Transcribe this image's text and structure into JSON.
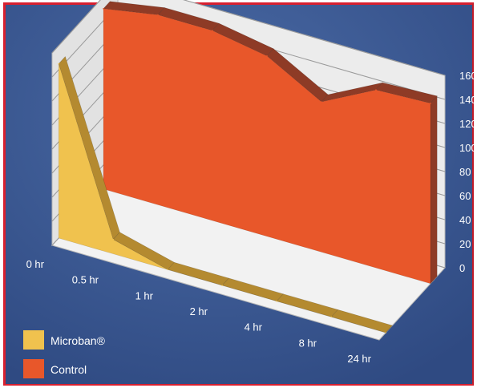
{
  "chart_data": {
    "type": "area",
    "title": "",
    "xlabel": "",
    "ylabel": "",
    "categories": [
      "0 hr",
      "0.5 hr",
      "1 hr",
      "2 hr",
      "4 hr",
      "8 hr",
      "24 hr"
    ],
    "ylim": [
      0,
      160
    ],
    "yticks": [
      0,
      20,
      40,
      60,
      80,
      100,
      120,
      140,
      160
    ],
    "grid": true,
    "legend_position": "bottom-left",
    "series": [
      {
        "name": "Microban®",
        "color": "#f0c24e",
        "values": [
          145,
          12,
          0,
          0,
          0,
          0,
          0
        ]
      },
      {
        "name": "Control",
        "color": "#e8572a",
        "values": [
          150,
          158,
          158,
          150,
          125,
          148,
          150
        ]
      }
    ]
  },
  "legend": {
    "items": [
      {
        "label": "Microban®",
        "color": "#f0c24e"
      },
      {
        "label": "Control",
        "color": "#e8572a"
      }
    ]
  }
}
